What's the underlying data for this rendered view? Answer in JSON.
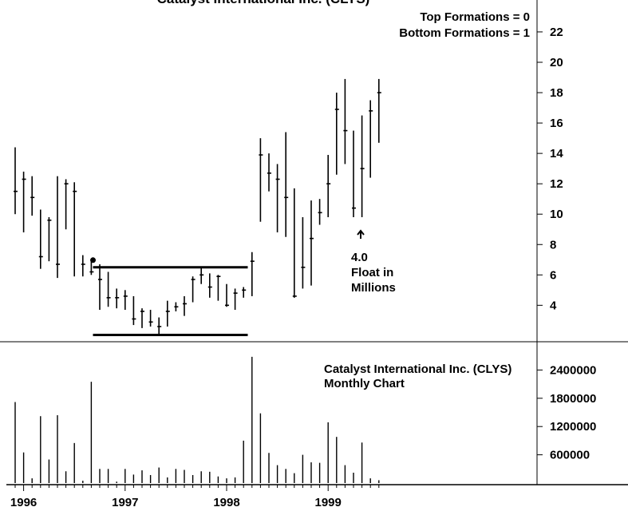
{
  "chart_data": [
    {
      "type": "ohlc",
      "title": "Catalyst International Inc. (CLYS)",
      "annotations": [
        "Top Formations = 0",
        "Bottom Formations = 1"
      ],
      "float_note": [
        "4.0",
        "Float in",
        "Millions"
      ],
      "series": [
        {
          "name": "CLYS",
          "color": "#000000",
          "high": [
            14.4,
            12.8,
            12.5,
            10.3,
            9.8,
            12.5,
            12.3,
            12.1,
            7.3,
            7.0,
            6.7,
            6.2,
            5.1,
            5.0,
            4.6,
            3.8,
            3.7,
            3.2,
            4.3,
            4.2,
            4.6,
            5.9,
            6.5,
            6.1,
            6.0,
            5.4,
            5.1,
            5.2,
            7.5,
            15.0,
            14.0,
            13.3,
            15.4,
            11.7,
            9.8,
            10.9,
            11.0,
            13.9,
            18.0,
            18.9,
            15.5,
            16.5,
            17.5,
            18.9
          ],
          "low": [
            10.0,
            8.8,
            9.9,
            6.4,
            6.9,
            5.8,
            9.0,
            5.9,
            5.9,
            6.0,
            3.7,
            3.9,
            3.8,
            3.7,
            2.7,
            2.5,
            2.6,
            2.1,
            2.6,
            3.6,
            3.3,
            4.2,
            5.4,
            4.5,
            4.3,
            3.9,
            3.7,
            4.5,
            4.6,
            9.5,
            11.5,
            8.8,
            8.5,
            4.5,
            5.1,
            5.3,
            9.3,
            9.8,
            12.6,
            13.3,
            9.8,
            9.8,
            12.4,
            14.7
          ],
          "close": [
            11.5,
            12.3,
            11.1,
            7.2,
            9.6,
            6.7,
            12.0,
            11.5,
            6.7,
            6.2,
            5.7,
            4.5,
            4.5,
            4.6,
            3.1,
            3.6,
            2.9,
            2.6,
            3.6,
            3.9,
            4.1,
            5.7,
            6.0,
            5.2,
            5.9,
            4.0,
            4.8,
            5.0,
            6.9,
            13.9,
            12.7,
            12.3,
            11.1,
            4.6,
            6.5,
            8.4,
            10.1,
            12.0,
            16.9,
            15.5,
            10.4,
            13.0,
            16.8,
            18.0
          ]
        }
      ],
      "pattern_lines": [
        {
          "y": 6.5,
          "x": [
            9.2,
            27.5
          ]
        },
        {
          "y": 2.05,
          "x": [
            9.2,
            27.5
          ]
        }
      ],
      "ylim": [
        1.6,
        24.1
      ],
      "yticks": [
        4,
        6,
        8,
        10,
        12,
        14,
        16,
        18,
        20,
        22
      ]
    },
    {
      "type": "bar",
      "title": "Catalyst International Inc. (CLYS)",
      "subtitle": "Monthly Chart",
      "categories": [
        null,
        "1996",
        null,
        null,
        null,
        null,
        null,
        null,
        null,
        null,
        null,
        null,
        null,
        "1997",
        null,
        null,
        null,
        null,
        null,
        null,
        null,
        null,
        null,
        null,
        null,
        "1998",
        null,
        null,
        null,
        null,
        null,
        null,
        null,
        null,
        null,
        null,
        null,
        "1999",
        null,
        null,
        null,
        null,
        null,
        null
      ],
      "values": [
        1720000,
        650000,
        100000,
        1420000,
        500000,
        1440000,
        250000,
        850000,
        50000,
        2150000,
        300000,
        300000,
        30000,
        300000,
        180000,
        270000,
        170000,
        330000,
        120000,
        300000,
        280000,
        170000,
        250000,
        240000,
        140000,
        100000,
        120000,
        900000,
        2680000,
        1480000,
        640000,
        380000,
        300000,
        210000,
        600000,
        440000,
        430000,
        1290000,
        980000,
        380000,
        220000,
        860000,
        100000,
        60000
      ],
      "color": "#000000",
      "ylim": [
        0,
        3000000
      ],
      "yticks": [
        600000,
        1200000,
        1800000,
        2400000
      ]
    }
  ]
}
